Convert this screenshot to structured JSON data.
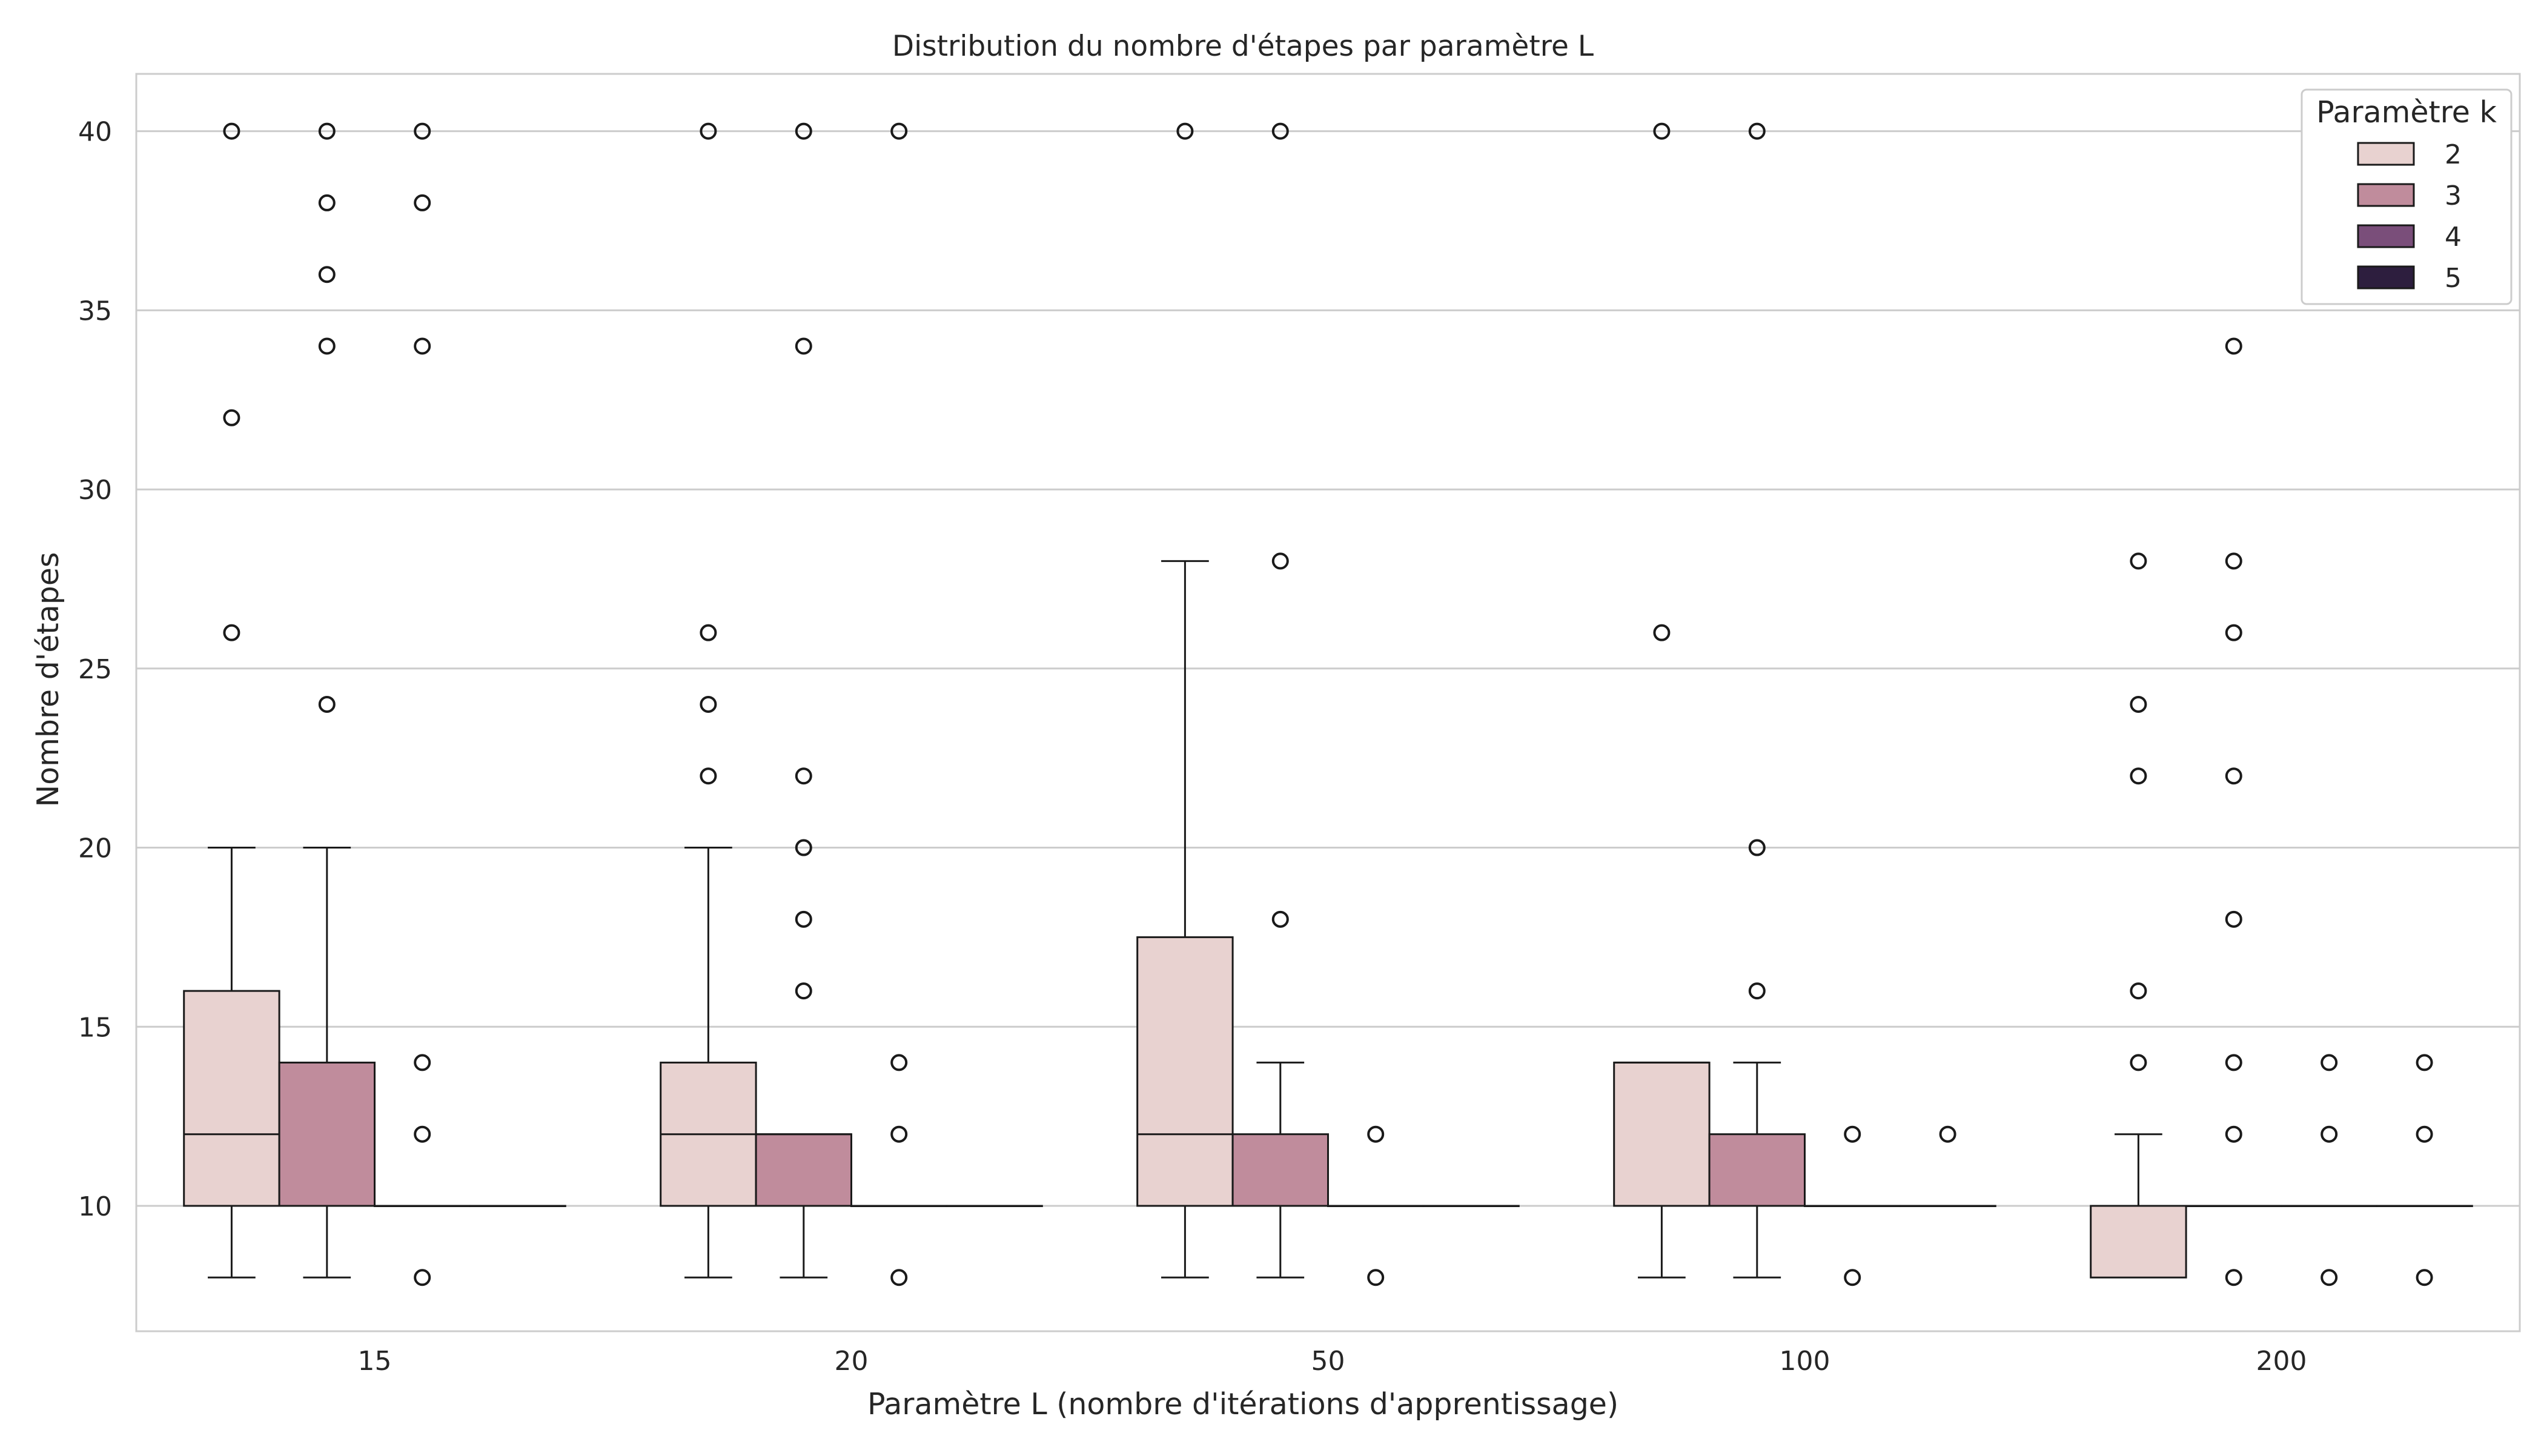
{
  "chart_data": {
    "type": "boxplot",
    "title": "Distribution du nombre d'étapes par paramètre L",
    "xlabel": "Paramètre L (nombre d'itérations d'apprentissage)",
    "ylabel": "Nombre d'étapes",
    "categories": [
      "15",
      "20",
      "50",
      "100",
      "200"
    ],
    "ylim": [
      6.5,
      41.6
    ],
    "yticks": [
      10,
      15,
      20,
      25,
      30,
      35,
      40
    ],
    "grid": "horizontal",
    "legend": {
      "title": "Paramètre k",
      "placement": "top-right",
      "entries": [
        "2",
        "3",
        "4",
        "5"
      ]
    },
    "series": [
      {
        "name": "2",
        "color": "#e8d2d0",
        "boxes": [
          {
            "category": "15",
            "whislo": 8,
            "q1": 10,
            "med": 12,
            "q3": 16,
            "whishi": 20,
            "fliers": [
              26,
              32,
              40
            ]
          },
          {
            "category": "20",
            "whislo": 8,
            "q1": 10,
            "med": 12,
            "q3": 14,
            "whishi": 20,
            "fliers": [
              22,
              24,
              26,
              40
            ]
          },
          {
            "category": "50",
            "whislo": 8,
            "q1": 10,
            "med": 12,
            "q3": 17.5,
            "whishi": 28,
            "fliers": [
              40
            ]
          },
          {
            "category": "100",
            "whislo": 8,
            "q1": 10,
            "med": 14,
            "q3": 14,
            "whishi": 14,
            "fliers": [
              26,
              40
            ]
          },
          {
            "category": "200",
            "whislo": 8,
            "q1": 8,
            "med": 10,
            "q3": 10,
            "whishi": 12,
            "fliers": [
              14,
              16,
              22,
              24,
              28
            ]
          }
        ]
      },
      {
        "name": "3",
        "color": "#c08c9c",
        "boxes": [
          {
            "category": "15",
            "whislo": 8,
            "q1": 10,
            "med": 10,
            "q3": 14,
            "whishi": 20,
            "fliers": [
              24,
              34,
              36,
              38,
              40
            ]
          },
          {
            "category": "20",
            "whislo": 8,
            "q1": 10,
            "med": 12,
            "q3": 12,
            "whishi": 12,
            "fliers": [
              16,
              18,
              20,
              22,
              34,
              40
            ]
          },
          {
            "category": "50",
            "whislo": 8,
            "q1": 10,
            "med": 10,
            "q3": 12,
            "whishi": 14,
            "fliers": [
              18,
              28,
              40
            ]
          },
          {
            "category": "100",
            "whislo": 8,
            "q1": 10,
            "med": 10,
            "q3": 12,
            "whishi": 14,
            "fliers": [
              16,
              20,
              40
            ]
          },
          {
            "category": "200",
            "whislo": 10,
            "q1": 10,
            "med": 10,
            "q3": 10,
            "whishi": 10,
            "fliers": [
              8,
              12,
              14,
              18,
              22,
              26,
              28,
              34
            ]
          }
        ]
      },
      {
        "name": "4",
        "color": "#7a4e7a",
        "boxes": [
          {
            "category": "15",
            "whislo": 10,
            "q1": 10,
            "med": 10,
            "q3": 10,
            "whishi": 10,
            "fliers": [
              8,
              12,
              14,
              34,
              38,
              40
            ]
          },
          {
            "category": "20",
            "whislo": 10,
            "q1": 10,
            "med": 10,
            "q3": 10,
            "whishi": 10,
            "fliers": [
              8,
              12,
              14,
              40
            ]
          },
          {
            "category": "50",
            "whislo": 10,
            "q1": 10,
            "med": 10,
            "q3": 10,
            "whishi": 10,
            "fliers": [
              8,
              12
            ]
          },
          {
            "category": "100",
            "whislo": 10,
            "q1": 10,
            "med": 10,
            "q3": 10,
            "whishi": 10,
            "fliers": [
              8,
              12
            ]
          },
          {
            "category": "200",
            "whislo": 10,
            "q1": 10,
            "med": 10,
            "q3": 10,
            "whishi": 10,
            "fliers": [
              8,
              12,
              14
            ]
          }
        ]
      },
      {
        "name": "5",
        "color": "#2d1e3e",
        "boxes": [
          {
            "category": "15",
            "whislo": 10,
            "q1": 10,
            "med": 10,
            "q3": 10,
            "whishi": 10,
            "fliers": []
          },
          {
            "category": "20",
            "whislo": 10,
            "q1": 10,
            "med": 10,
            "q3": 10,
            "whishi": 10,
            "fliers": []
          },
          {
            "category": "50",
            "whislo": 10,
            "q1": 10,
            "med": 10,
            "q3": 10,
            "whishi": 10,
            "fliers": []
          },
          {
            "category": "100",
            "whislo": 10,
            "q1": 10,
            "med": 10,
            "q3": 10,
            "whishi": 10,
            "fliers": [
              12
            ]
          },
          {
            "category": "200",
            "whislo": 10,
            "q1": 10,
            "med": 10,
            "q3": 10,
            "whishi": 10,
            "fliers": [
              8,
              12,
              14
            ]
          }
        ]
      }
    ]
  }
}
